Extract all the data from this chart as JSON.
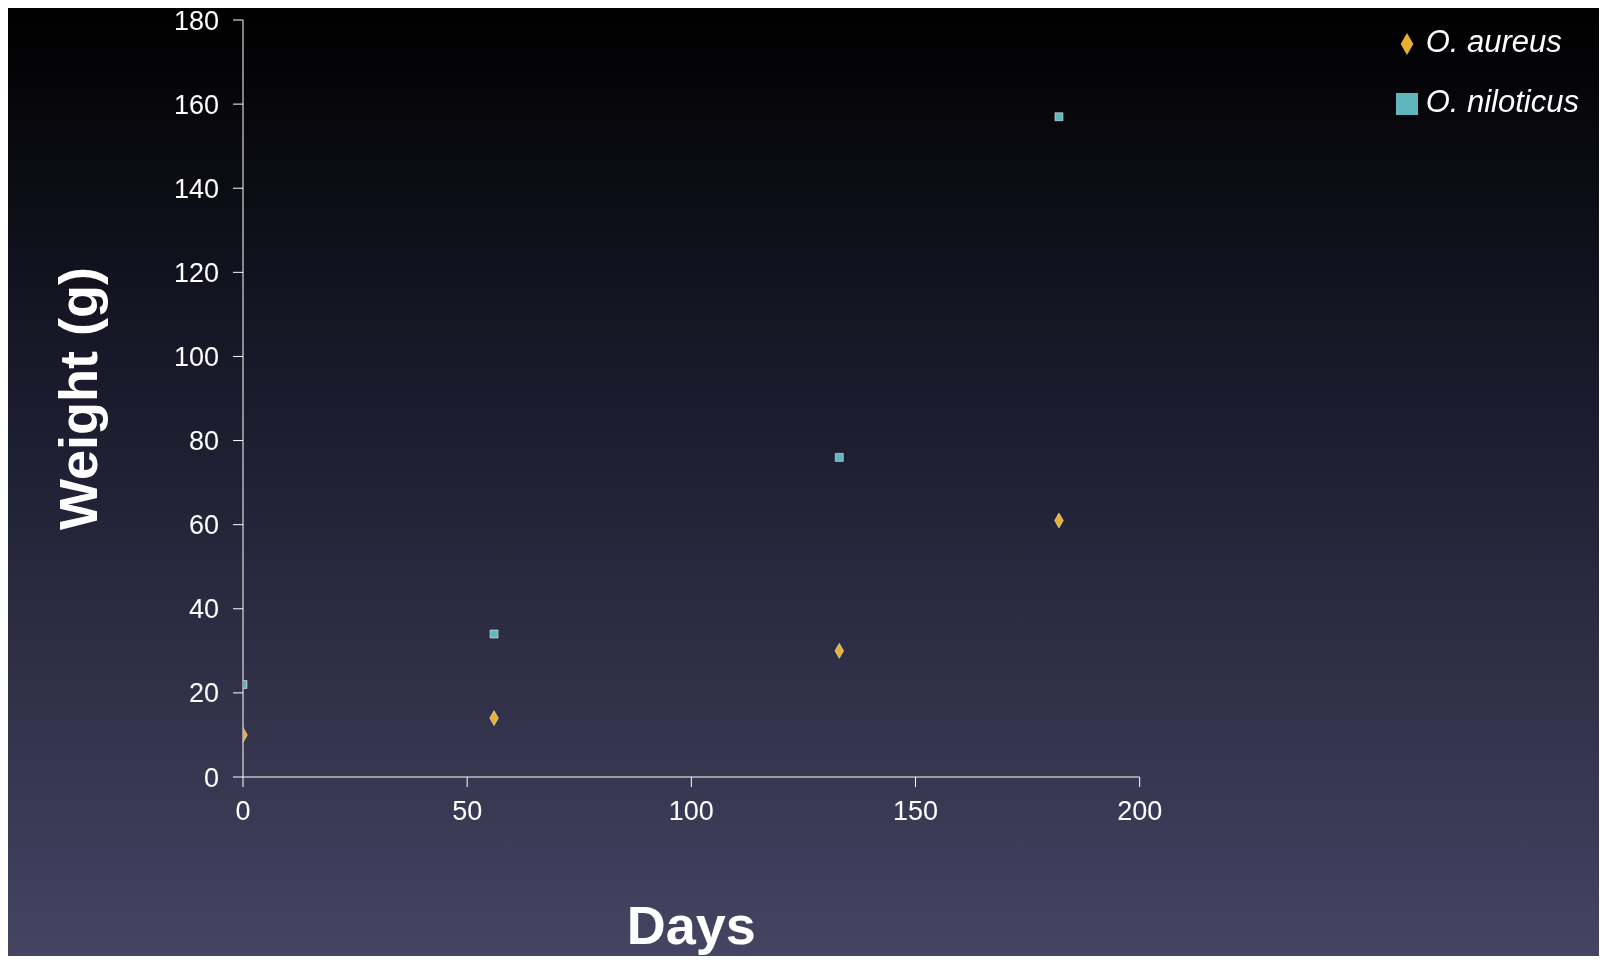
{
  "chart_data": {
    "type": "scatter",
    "xlabel": "Days",
    "ylabel": "Weight (g)",
    "series": [
      {
        "name": "O. aureus",
        "color": "#e8b032",
        "marker": "diamond",
        "x": [
          0,
          56,
          133,
          182
        ],
        "values": [
          10,
          14,
          30,
          61
        ]
      },
      {
        "name": "O. niloticus",
        "color": "#5fb6bd",
        "marker": "square",
        "x": [
          0,
          56,
          133,
          182
        ],
        "values": [
          22,
          34,
          76,
          157
        ]
      }
    ],
    "xlim": [
      0,
      200
    ],
    "xticks": [
      0,
      50,
      100,
      150,
      200
    ],
    "ylim": [
      0,
      180
    ],
    "yticks": [
      0,
      20,
      40,
      60,
      80,
      100,
      120,
      140,
      160,
      180
    ],
    "grid": false,
    "legend": "top right"
  }
}
